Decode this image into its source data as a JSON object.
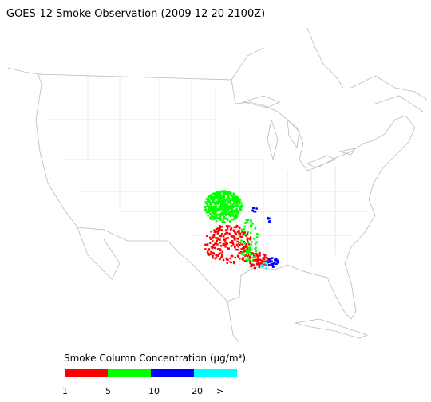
{
  "title": "GOES-12 Smoke Observation (2009 12 20  2100Z)",
  "legend": {
    "title": "Smoke Column Concentration (μg/m³)",
    "colors": [
      "#ff0000",
      "#00ff00",
      "#0000ff",
      "#00ffff"
    ],
    "labels": [
      "1",
      "5",
      "10",
      "20",
      ">"
    ]
  }
}
